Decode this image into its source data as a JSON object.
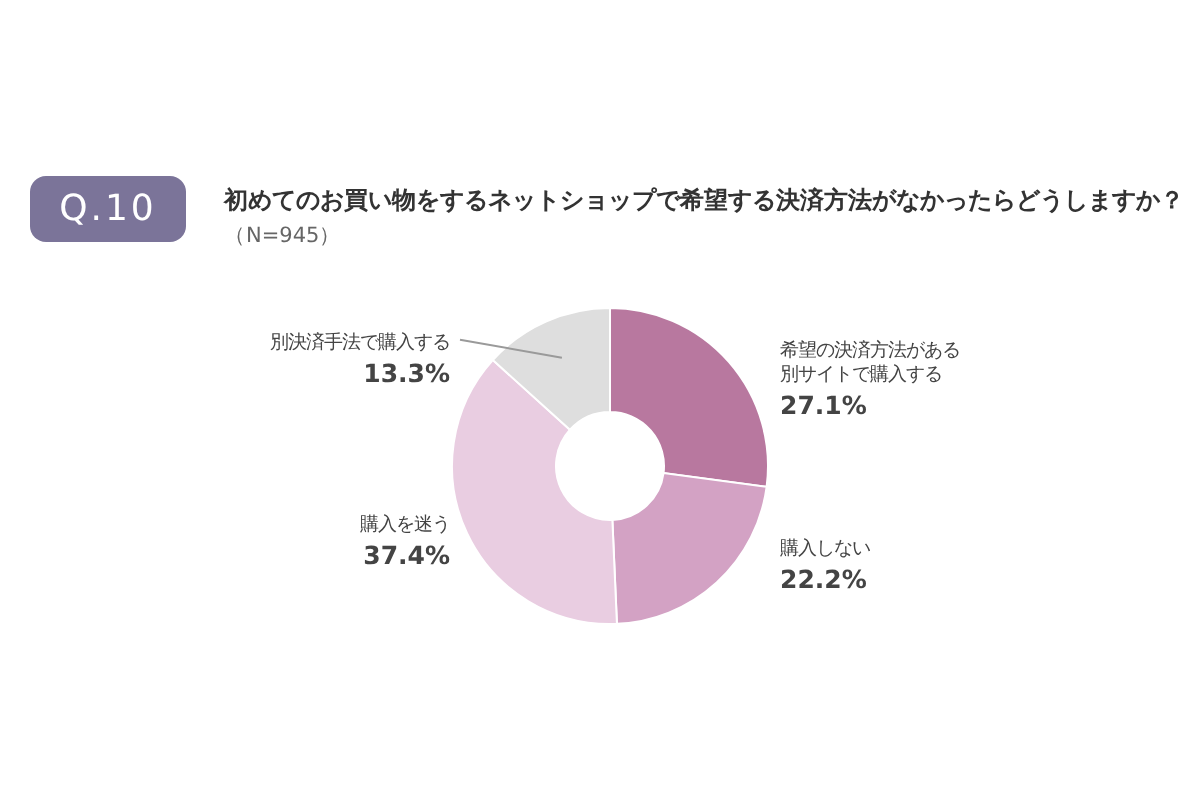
{
  "chart_data": {
    "type": "donut",
    "title": "初めてのお買い物をするネットショップで希望する決済方法がなかったらどうしますか？",
    "subtitle": "（N=945）",
    "annotations": [
      "Q.10"
    ],
    "categories": [
      "希望の決済方法がある別サイトで購入する",
      "購入しない",
      "購入を迷う",
      "別決済手法で購入する"
    ],
    "values": [
      27.1,
      22.2,
      37.4,
      13.3
    ],
    "colors": [
      "#b8789f",
      "#d3a2c4",
      "#e9cde1",
      "#dedede"
    ],
    "value_labels": [
      "27.1%",
      "22.2%",
      "37.4%",
      "13.3%"
    ]
  }
}
